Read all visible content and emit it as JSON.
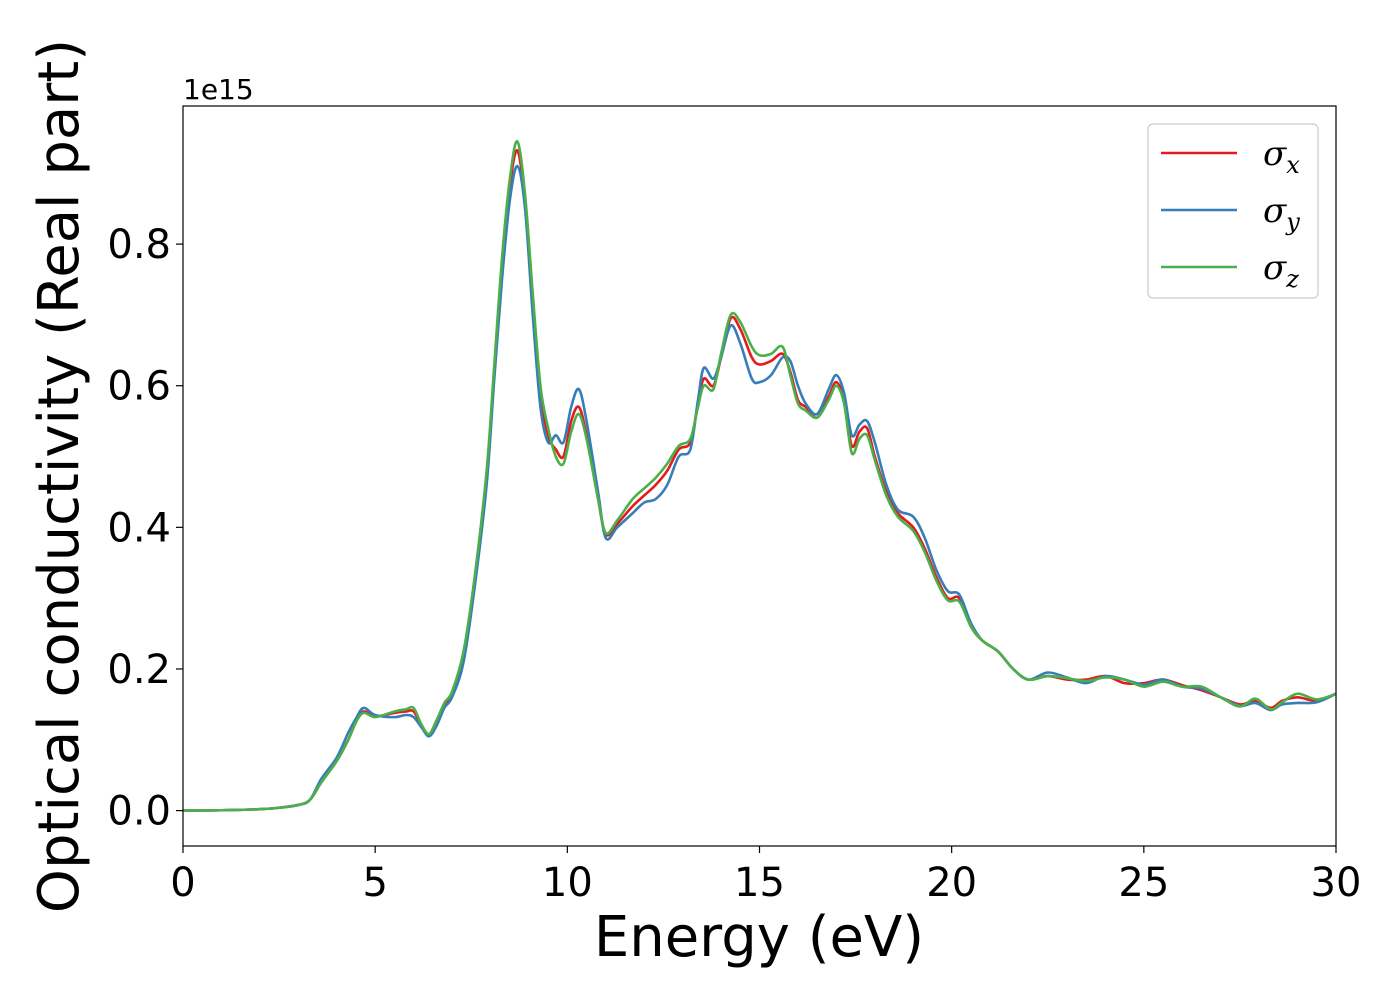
{
  "chart_data": {
    "type": "line",
    "title": "",
    "xlabel": "Energy (eV)",
    "ylabel": "Optical conductivity (Real part)",
    "y_offset_label": "1e15",
    "xlim": [
      0,
      30
    ],
    "ylim": [
      -0.05,
      0.995
    ],
    "xticks": [
      0,
      5,
      10,
      15,
      20,
      25,
      30
    ],
    "xtick_labels": [
      "0",
      "5",
      "10",
      "15",
      "20",
      "25",
      "30"
    ],
    "yticks": [
      0.0,
      0.2,
      0.4,
      0.6,
      0.8
    ],
    "ytick_labels": [
      "0.0",
      "0.2",
      "0.4",
      "0.6",
      "0.8"
    ],
    "grid": false,
    "legend_position": "top-right",
    "x": [
      0,
      1,
      2,
      2.5,
      3,
      3.3,
      3.6,
      4.0,
      4.3,
      4.5,
      4.7,
      5.0,
      5.5,
      5.8,
      6.0,
      6.2,
      6.4,
      6.6,
      6.8,
      7.0,
      7.3,
      7.6,
      7.9,
      8.1,
      8.3,
      8.5,
      8.7,
      8.9,
      9.1,
      9.3,
      9.5,
      9.7,
      9.9,
      10.1,
      10.3,
      10.5,
      10.8,
      11.0,
      11.3,
      11.7,
      12.0,
      12.3,
      12.6,
      12.9,
      13.2,
      13.4,
      13.55,
      13.8,
      14.0,
      14.25,
      14.5,
      14.8,
      15.0,
      15.3,
      15.6,
      15.8,
      16.0,
      16.2,
      16.5,
      16.8,
      17.0,
      17.2,
      17.4,
      17.6,
      17.8,
      18.0,
      18.3,
      18.6,
      19.0,
      19.3,
      19.6,
      19.9,
      20.2,
      20.5,
      20.8,
      21.2,
      21.6,
      22.0,
      22.5,
      23.0,
      23.5,
      24.0,
      24.5,
      25.0,
      25.5,
      26.0,
      26.5,
      27.0,
      27.5,
      27.9,
      28.3,
      28.6,
      29.0,
      29.5,
      30.0
    ],
    "series": [
      {
        "name": "σx",
        "label_symbol": "σ",
        "label_sub": "x",
        "color": "#e41a1c",
        "values": [
          0.0,
          0.0005,
          0.002,
          0.004,
          0.008,
          0.015,
          0.04,
          0.07,
          0.1,
          0.125,
          0.14,
          0.133,
          0.138,
          0.14,
          0.14,
          0.12,
          0.107,
          0.125,
          0.15,
          0.165,
          0.22,
          0.33,
          0.47,
          0.62,
          0.77,
          0.88,
          0.932,
          0.86,
          0.72,
          0.59,
          0.53,
          0.51,
          0.5,
          0.55,
          0.57,
          0.53,
          0.44,
          0.39,
          0.405,
          0.43,
          0.445,
          0.46,
          0.48,
          0.51,
          0.52,
          0.575,
          0.61,
          0.6,
          0.64,
          0.695,
          0.68,
          0.64,
          0.63,
          0.635,
          0.645,
          0.62,
          0.58,
          0.57,
          0.555,
          0.585,
          0.605,
          0.58,
          0.515,
          0.535,
          0.54,
          0.5,
          0.45,
          0.42,
          0.4,
          0.37,
          0.33,
          0.3,
          0.3,
          0.26,
          0.24,
          0.225,
          0.2,
          0.185,
          0.19,
          0.185,
          0.185,
          0.19,
          0.18,
          0.18,
          0.185,
          0.177,
          0.17,
          0.16,
          0.15,
          0.155,
          0.145,
          0.155,
          0.16,
          0.155,
          0.165
        ]
      },
      {
        "name": "σy",
        "label_symbol": "σ",
        "label_sub": "y",
        "color": "#377eb8",
        "values": [
          0.0,
          0.0005,
          0.002,
          0.004,
          0.008,
          0.015,
          0.045,
          0.075,
          0.11,
          0.13,
          0.145,
          0.135,
          0.132,
          0.135,
          0.132,
          0.118,
          0.105,
          0.12,
          0.145,
          0.16,
          0.21,
          0.32,
          0.46,
          0.61,
          0.75,
          0.86,
          0.91,
          0.85,
          0.7,
          0.57,
          0.52,
          0.53,
          0.52,
          0.57,
          0.595,
          0.55,
          0.45,
          0.385,
          0.4,
          0.42,
          0.435,
          0.44,
          0.46,
          0.5,
          0.51,
          0.58,
          0.625,
          0.61,
          0.64,
          0.685,
          0.66,
          0.61,
          0.605,
          0.615,
          0.64,
          0.635,
          0.6,
          0.575,
          0.56,
          0.595,
          0.615,
          0.59,
          0.53,
          0.545,
          0.55,
          0.52,
          0.46,
          0.425,
          0.415,
          0.385,
          0.34,
          0.31,
          0.305,
          0.265,
          0.24,
          0.225,
          0.2,
          0.185,
          0.195,
          0.188,
          0.18,
          0.19,
          0.185,
          0.178,
          0.185,
          0.175,
          0.172,
          0.16,
          0.148,
          0.152,
          0.142,
          0.15,
          0.152,
          0.153,
          0.165
        ]
      },
      {
        "name": "σz",
        "label_symbol": "σ",
        "label_sub": "z",
        "color": "#4daf4a",
        "values": [
          0.0,
          0.0005,
          0.002,
          0.004,
          0.008,
          0.015,
          0.04,
          0.07,
          0.1,
          0.125,
          0.138,
          0.132,
          0.14,
          0.143,
          0.145,
          0.122,
          0.108,
          0.128,
          0.152,
          0.168,
          0.225,
          0.335,
          0.48,
          0.63,
          0.78,
          0.89,
          0.945,
          0.87,
          0.73,
          0.6,
          0.54,
          0.5,
          0.49,
          0.535,
          0.56,
          0.525,
          0.44,
          0.392,
          0.41,
          0.44,
          0.455,
          0.47,
          0.49,
          0.515,
          0.525,
          0.57,
          0.6,
          0.595,
          0.645,
          0.7,
          0.69,
          0.655,
          0.643,
          0.645,
          0.655,
          0.615,
          0.575,
          0.565,
          0.555,
          0.58,
          0.6,
          0.575,
          0.505,
          0.525,
          0.53,
          0.495,
          0.445,
          0.415,
          0.395,
          0.365,
          0.325,
          0.297,
          0.295,
          0.26,
          0.24,
          0.225,
          0.2,
          0.185,
          0.19,
          0.187,
          0.183,
          0.188,
          0.185,
          0.175,
          0.182,
          0.175,
          0.175,
          0.16,
          0.147,
          0.158,
          0.143,
          0.153,
          0.165,
          0.157,
          0.165
        ]
      }
    ]
  }
}
